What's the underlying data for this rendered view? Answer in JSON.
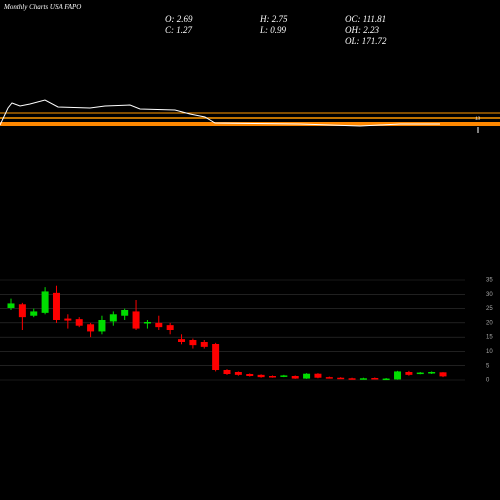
{
  "chart_data": {
    "type": "candlestick",
    "title": "Monthly Charts USA FAPO",
    "stats": [
      [
        "O: 2.69",
        "H: 2.75",
        "OC: 111.81"
      ],
      [
        "C: 1.27",
        "L: 0.99",
        "OH: 2.23"
      ],
      [
        null,
        null,
        "OL: 171.72"
      ]
    ],
    "annotation": "13",
    "open": [
      25.2,
      26.5,
      22.5,
      23.5,
      30.5,
      21.5,
      21.3,
      19.5,
      17,
      20.5,
      22.5,
      24,
      19.8,
      20,
      19.2,
      14.3,
      14,
      13.3,
      12.6,
      3.5,
      2.8,
      2.1,
      1.8,
      1.4,
      1.2,
      1.4,
      0.5,
      2.2,
      1.0,
      0.8,
      0.6,
      0.3,
      0.7,
      0.3,
      0.2,
      2.8,
      2.2,
      2.3,
      2.69
    ],
    "high": [
      28.5,
      27,
      25,
      32.5,
      33,
      23,
      22,
      20,
      22.5,
      24,
      25,
      28,
      21,
      22.5,
      20,
      16,
      14.5,
      14,
      13,
      3.8,
      3,
      2.3,
      2,
      1.6,
      1.8,
      1.6,
      2.4,
      2.4,
      1.2,
      1.0,
      0.8,
      0.8,
      0.9,
      0.7,
      3.2,
      3.2,
      2.8,
      3.0,
      2.75
    ],
    "low": [
      24.5,
      17.5,
      22,
      23,
      20,
      18,
      18.5,
      15,
      16,
      19,
      21,
      17.5,
      18,
      17.5,
      16,
      12.5,
      11,
      11,
      3,
      1.8,
      1.5,
      1.2,
      0.8,
      0.8,
      1.0,
      0.4,
      0.4,
      0.6,
      0.5,
      0.4,
      0.3,
      0.2,
      0.3,
      0.2,
      0.1,
      1.5,
      2.0,
      2.1,
      0.99
    ],
    "close": [
      26.8,
      22,
      24,
      31,
      21,
      20.8,
      19,
      17,
      21,
      23,
      24.5,
      18,
      20.3,
      18.5,
      17.5,
      13.3,
      12.2,
      11.6,
      3.5,
      2.1,
      1.8,
      1.4,
      1.0,
      1.0,
      1.6,
      0.5,
      2.2,
      0.8,
      0.6,
      0.5,
      0.4,
      0.6,
      0.4,
      0.5,
      3.0,
      1.8,
      2.6,
      2.8,
      1.27
    ],
    "up_color": "#00dd00",
    "down_color": "#ff0000",
    "ylim": [
      0,
      35
    ],
    "yticks": [
      0,
      5,
      10,
      15,
      20,
      25,
      30,
      35
    ],
    "grid": true
  }
}
